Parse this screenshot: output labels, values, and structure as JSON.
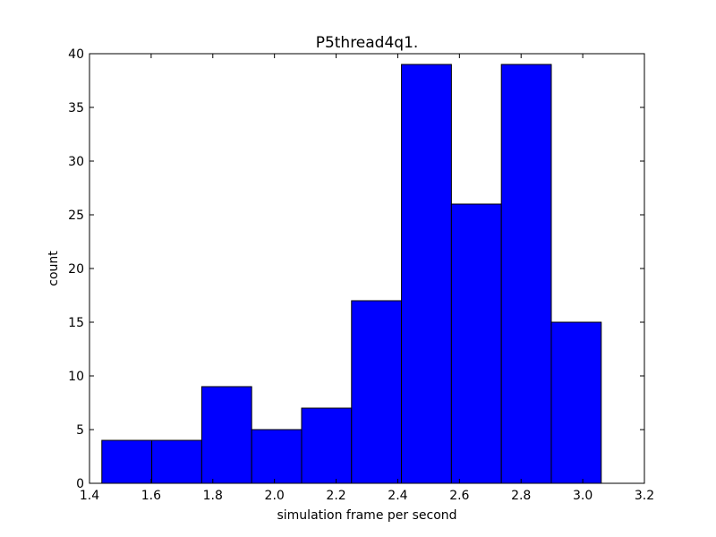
{
  "chart_data": {
    "type": "bar",
    "title": "P5thread4q1.",
    "xlabel": "simulation frame per second",
    "ylabel": "count",
    "xlim": [
      1.4,
      3.2
    ],
    "ylim": [
      0,
      40
    ],
    "xticks": [
      "1.4",
      "1.6",
      "1.8",
      "2.0",
      "2.2",
      "2.4",
      "2.6",
      "2.8",
      "3.0",
      "3.2"
    ],
    "yticks": [
      "0",
      "5",
      "10",
      "15",
      "20",
      "25",
      "30",
      "35",
      "40"
    ],
    "bin_edges": [
      1.44,
      1.602,
      1.764,
      1.926,
      2.088,
      2.25,
      2.412,
      2.574,
      2.736,
      2.898,
      3.06
    ],
    "values": [
      4,
      4,
      9,
      5,
      7,
      17,
      39,
      26,
      39,
      15
    ],
    "bar_color": "#0000ff",
    "edge_color": "#000000",
    "grid": false
  }
}
